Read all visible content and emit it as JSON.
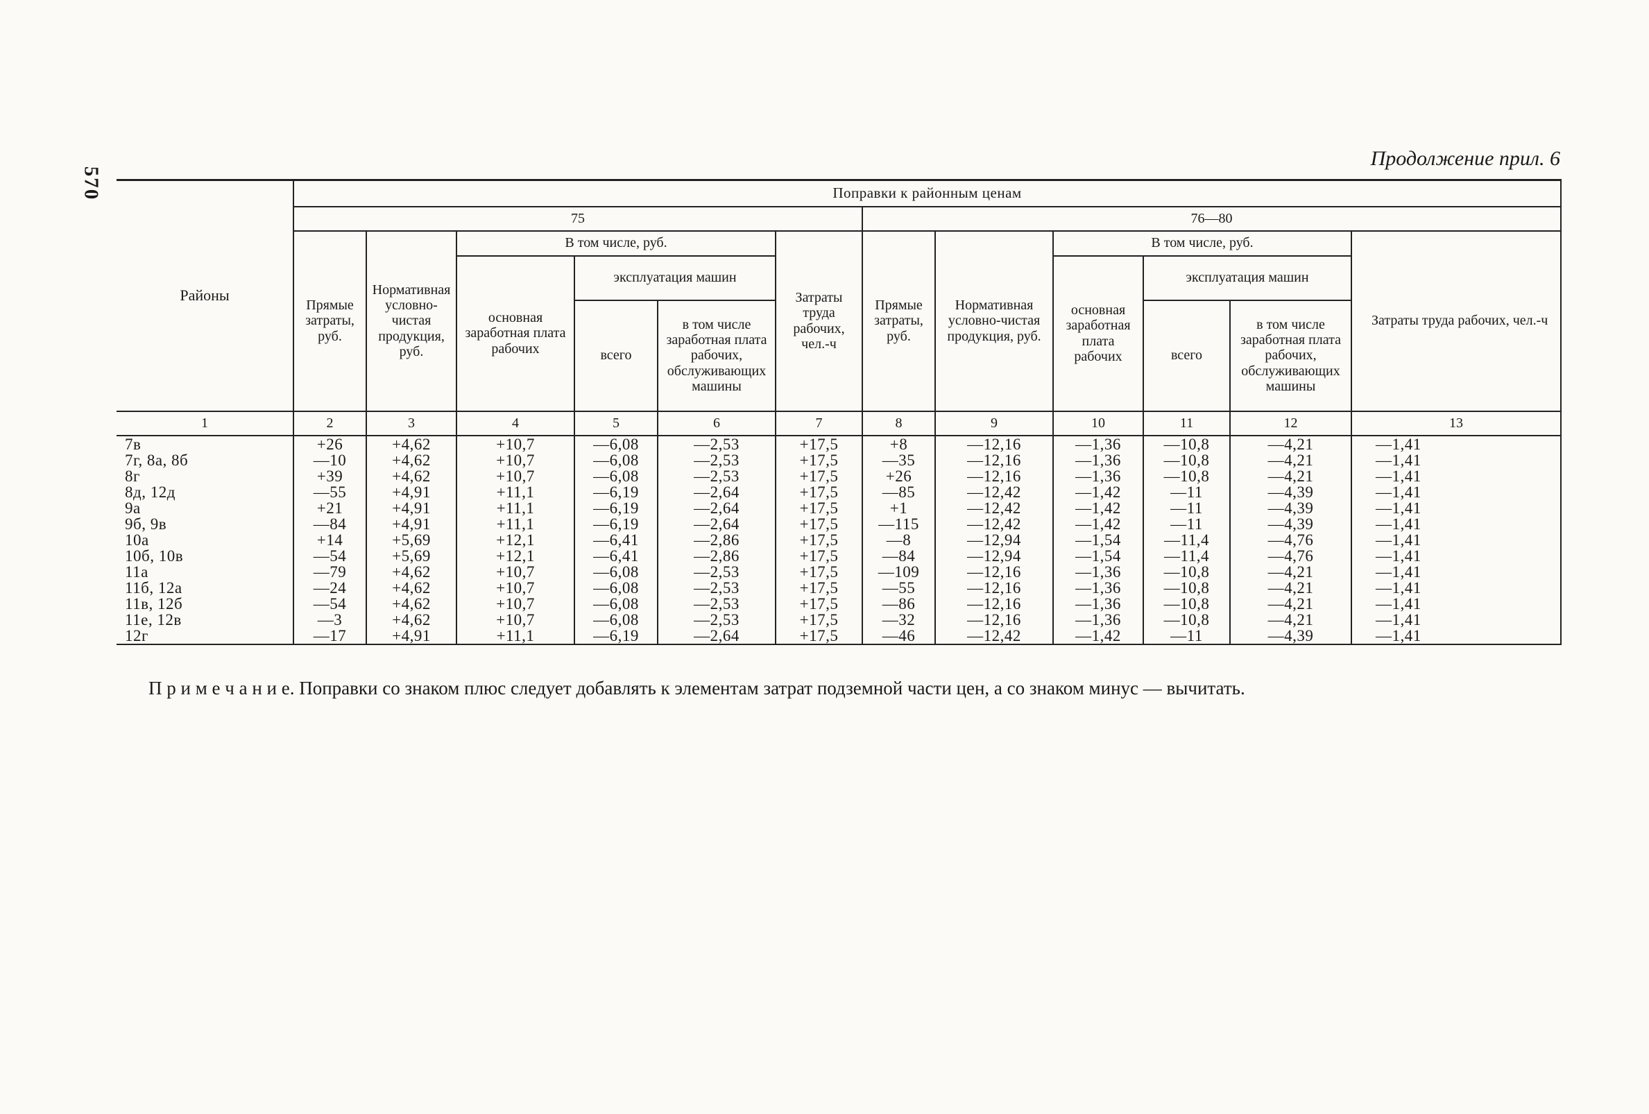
{
  "page": {
    "page_number": "570",
    "header_right": "Продолжение прил. 6"
  },
  "table": {
    "corrections_title": "Поправки к районным ценам",
    "districts_header": "Районы",
    "group75": {
      "label": "75",
      "direct": "Прямые затраты, руб.",
      "normative": "Нормативная условно-чистая продукция, руб.",
      "including": "В том числе, руб.",
      "basic_wage": "основная заработная плата рабочих",
      "machines": "эксплуатация машин",
      "total": "всего",
      "machines_wage": "в том числе заработная плата рабочих, обслуживающих машины",
      "labor": "Затраты труда рабочих, чел.-ч"
    },
    "group76": {
      "label": "76—80",
      "direct": "Прямые затраты, руб.",
      "normative": "Нормативная условно-чистая продукция, руб.",
      "including": "В том числе, руб.",
      "basic_wage": "основная заработная плата рабочих",
      "machines": "эксплуатация машин",
      "total": "всего",
      "machines_wage": "в том числе заработная плата рабочих, обслуживающих машины",
      "labor": "Затраты труда рабочих, чел.-ч"
    },
    "column_numbers": [
      "1",
      "2",
      "3",
      "4",
      "5",
      "6",
      "7",
      "8",
      "9",
      "10",
      "11",
      "12",
      "13"
    ],
    "rows": [
      {
        "district": "7в",
        "values": [
          "+26",
          "+4,62",
          "+10,7",
          "—6,08",
          "—2,53",
          "+17,5",
          "+8",
          "—12,16",
          "—1,36",
          "—10,8",
          "—4,21",
          "—1,41"
        ]
      },
      {
        "district": "7г, 8а, 8б",
        "values": [
          "—10",
          "+4,62",
          "+10,7",
          "—6,08",
          "—2,53",
          "+17,5",
          "—35",
          "—12,16",
          "—1,36",
          "—10,8",
          "—4,21",
          "—1,41"
        ]
      },
      {
        "district": "8г",
        "values": [
          "+39",
          "+4,62",
          "+10,7",
          "—6,08",
          "—2,53",
          "+17,5",
          "+26",
          "—12,16",
          "—1,36",
          "—10,8",
          "—4,21",
          "—1,41"
        ]
      },
      {
        "district": "8д, 12д",
        "values": [
          "—55",
          "+4,91",
          "+11,1",
          "—6,19",
          "—2,64",
          "+17,5",
          "—85",
          "—12,42",
          "—1,42",
          "—11",
          "—4,39",
          "—1,41"
        ]
      },
      {
        "district": "9а",
        "values": [
          "+21",
          "+4,91",
          "+11,1",
          "—6,19",
          "—2,64",
          "+17,5",
          "+1",
          "—12,42",
          "—1,42",
          "—11",
          "—4,39",
          "—1,41"
        ]
      },
      {
        "district": "9б, 9в",
        "values": [
          "—84",
          "+4,91",
          "+11,1",
          "—6,19",
          "—2,64",
          "+17,5",
          "—115",
          "—12,42",
          "—1,42",
          "—11",
          "—4,39",
          "—1,41"
        ]
      },
      {
        "district": "10а",
        "values": [
          "+14",
          "+5,69",
          "+12,1",
          "—6,41",
          "—2,86",
          "+17,5",
          "—8",
          "—12,94",
          "—1,54",
          "—11,4",
          "—4,76",
          "—1,41"
        ]
      },
      {
        "district": "10б, 10в",
        "values": [
          "—54",
          "+5,69",
          "+12,1",
          "—6,41",
          "—2,86",
          "+17,5",
          "—84",
          "—12,94",
          "—1,54",
          "—11,4",
          "—4,76",
          "—1,41"
        ]
      },
      {
        "district": "11а",
        "values": [
          "—79",
          "+4,62",
          "+10,7",
          "—6,08",
          "—2,53",
          "+17,5",
          "—109",
          "—12,16",
          "—1,36",
          "—10,8",
          "—4,21",
          "—1,41"
        ]
      },
      {
        "district": "11б, 12а",
        "values": [
          "—24",
          "+4,62",
          "+10,7",
          "—6,08",
          "—2,53",
          "+17,5",
          "—55",
          "—12,16",
          "—1,36",
          "—10,8",
          "—4,21",
          "—1,41"
        ]
      },
      {
        "district": "11в, 12б",
        "values": [
          "—54",
          "+4,62",
          "+10,7",
          "—6,08",
          "—2,53",
          "+17,5",
          "—86",
          "—12,16",
          "—1,36",
          "—10,8",
          "—4,21",
          "—1,41"
        ]
      },
      {
        "district": "11е, 12в",
        "values": [
          "—3",
          "+4,62",
          "+10,7",
          "—6,08",
          "—2,53",
          "+17,5",
          "—32",
          "—12,16",
          "—1,36",
          "—10,8",
          "—4,21",
          "—1,41"
        ]
      },
      {
        "district": "12г",
        "values": [
          "—17",
          "+4,91",
          "+11,1",
          "—6,19",
          "—2,64",
          "+17,5",
          "—46",
          "—12,42",
          "—1,42",
          "—11",
          "—4,39",
          "—1,41"
        ]
      }
    ]
  },
  "note": {
    "label": "П р и м е ч а н и е.",
    "text": "Поправки со знаком плюс следует добавлять к элементам затрат подземной части цен, а со знаком минус — вычитать."
  }
}
